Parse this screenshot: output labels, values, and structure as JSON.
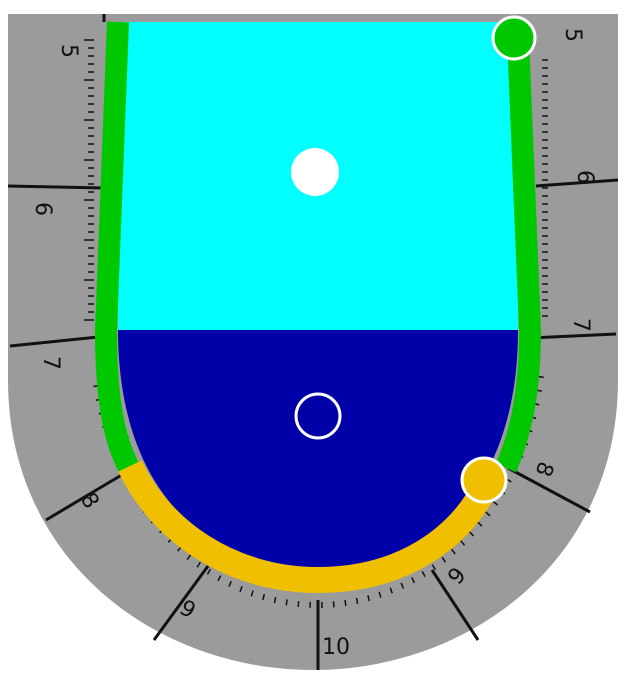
{
  "dial": {
    "labels": {
      "top_left": "5",
      "top_right": "5",
      "left_upper": "6",
      "right_upper": "6",
      "left_middle": "7",
      "right_middle": "7",
      "left_lower": "8",
      "right_lower": "8",
      "bottom_left": "9",
      "bottom_right": "9",
      "bottom_center": "10"
    }
  },
  "colors": {
    "dial_gray": "#9b9b9b",
    "bowl_light": "#00ffff",
    "bowl_dark": "#0000a8",
    "arc_green": "#00c800",
    "arc_yellow": "#f0c000",
    "ticks": "#111111"
  },
  "markers": {
    "light_marker": "filled-white-circle",
    "dark_marker": "hollow-white-circle",
    "green_handle": "green-dot",
    "yellow_handle": "yellow-dot"
  }
}
